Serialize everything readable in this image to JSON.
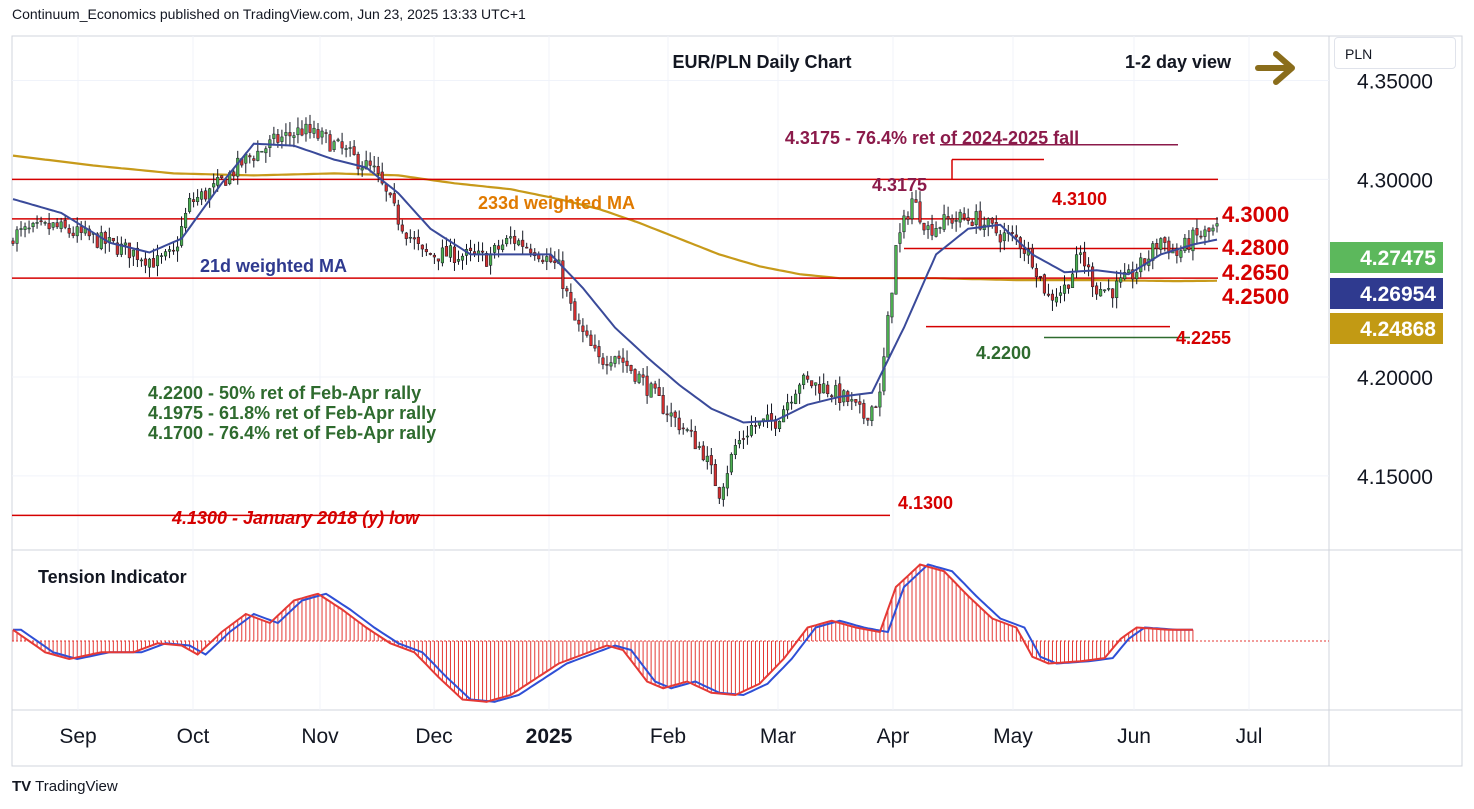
{
  "header": {
    "published": "Continuum_Economics published on TradingView.com, Jun 23, 2025 13:33 UTC+1"
  },
  "branding": {
    "logo_text": "TradingView",
    "logo_mark": "TV"
  },
  "currency_label": "PLN",
  "colors": {
    "up": "#4caf50",
    "down": "#d32f2f",
    "ma21": "#3a4a9a",
    "ma233": "#c79a1a",
    "level": "#d50000",
    "fib": "#8b1a4a",
    "support_green": "#2e6b2e",
    "arrow": "#8a6d1b",
    "tension_hist": "#e53935",
    "tension_line": "#2f4fd6"
  },
  "chart_data": {
    "type": "candlestick",
    "title": "EUR/PLN Daily Chart",
    "view": "1-2 day view",
    "y_axis": {
      "ticks": [
        "4.35000",
        "4.30000",
        "4.20000",
        "4.15000"
      ],
      "ylim": [
        4.1135,
        4.3725
      ]
    },
    "x_axis": {
      "ticks": [
        "Sep",
        "Oct",
        "Nov",
        "Dec",
        "2025",
        "Feb",
        "Mar",
        "Apr",
        "May",
        "Jun",
        "Jul"
      ]
    },
    "price_badges": [
      {
        "value": "4.27475",
        "bg": "#5cb85c"
      },
      {
        "value": "4.26954",
        "bg": "#2f3a8f"
      },
      {
        "value": "4.24868",
        "bg": "#c29a14"
      }
    ],
    "levels": [
      {
        "price": 4.3,
        "label": "4.3000"
      },
      {
        "price": 4.28,
        "label": "4.2800"
      },
      {
        "price": 4.265,
        "label": "4.2650"
      },
      {
        "price": 4.25,
        "label": "4.2500"
      },
      {
        "price": 4.2255,
        "label": "4.2255"
      },
      {
        "price": 4.22,
        "label": "4.2200"
      },
      {
        "price": 4.13,
        "label": "4.1300"
      },
      {
        "price": 4.3175,
        "label": "4.3175"
      },
      {
        "price": 4.31,
        "label": "4.3100"
      }
    ],
    "annotations": {
      "fib_top": "4.3175 - 76.4% ret of 2024-2025 fall",
      "ma233": "233d weighted MA",
      "ma21": "21d weighted MA",
      "ret1": "4.2200 - 50% ret of Feb-Apr rally",
      "ret2": "4.1975 - 61.8% ret of Feb-Apr rally",
      "ret3": "4.1700 - 76.4% ret of Feb-Apr rally",
      "low2018": "4.1300 - January 2018 (y) low"
    },
    "close_anchors": [
      [
        0,
        4.272
      ],
      [
        10,
        4.276
      ],
      [
        20,
        4.27
      ],
      [
        30,
        4.263
      ],
      [
        36,
        4.258
      ],
      [
        40,
        4.262
      ],
      [
        44,
        4.288
      ],
      [
        50,
        4.295
      ],
      [
        58,
        4.31
      ],
      [
        66,
        4.32
      ],
      [
        72,
        4.325
      ],
      [
        78,
        4.32
      ],
      [
        84,
        4.312
      ],
      [
        90,
        4.304
      ],
      [
        96,
        4.28
      ],
      [
        102,
        4.262
      ],
      [
        110,
        4.262
      ],
      [
        118,
        4.26
      ],
      [
        124,
        4.27
      ],
      [
        130,
        4.265
      ],
      [
        136,
        4.255
      ],
      [
        140,
        4.228
      ],
      [
        146,
        4.208
      ],
      [
        150,
        4.212
      ],
      [
        156,
        4.2
      ],
      [
        162,
        4.185
      ],
      [
        168,
        4.172
      ],
      [
        172,
        4.162
      ],
      [
        176,
        4.142
      ],
      [
        180,
        4.165
      ],
      [
        184,
        4.175
      ],
      [
        190,
        4.178
      ],
      [
        196,
        4.198
      ],
      [
        202,
        4.195
      ],
      [
        208,
        4.188
      ],
      [
        212,
        4.18
      ],
      [
        216,
        4.19
      ],
      [
        220,
        4.265
      ],
      [
        224,
        4.29
      ],
      [
        228,
        4.275
      ],
      [
        234,
        4.28
      ],
      [
        240,
        4.28
      ],
      [
        246,
        4.272
      ],
      [
        250,
        4.27
      ],
      [
        254,
        4.26
      ],
      [
        258,
        4.24
      ],
      [
        262,
        4.245
      ],
      [
        266,
        4.262
      ],
      [
        270,
        4.245
      ],
      [
        274,
        4.244
      ],
      [
        278,
        4.25
      ],
      [
        282,
        4.258
      ],
      [
        286,
        4.27
      ],
      [
        290,
        4.262
      ],
      [
        294,
        4.27
      ],
      [
        298,
        4.273
      ],
      [
        300,
        4.2748
      ]
    ],
    "ma21_anchors": [
      [
        0,
        4.29
      ],
      [
        12,
        4.283
      ],
      [
        24,
        4.268
      ],
      [
        34,
        4.263
      ],
      [
        42,
        4.27
      ],
      [
        52,
        4.298
      ],
      [
        60,
        4.318
      ],
      [
        70,
        4.317
      ],
      [
        80,
        4.31
      ],
      [
        88,
        4.306
      ],
      [
        96,
        4.293
      ],
      [
        104,
        4.275
      ],
      [
        114,
        4.262
      ],
      [
        124,
        4.262
      ],
      [
        134,
        4.262
      ],
      [
        142,
        4.245
      ],
      [
        150,
        4.225
      ],
      [
        158,
        4.21
      ],
      [
        166,
        4.196
      ],
      [
        174,
        4.184
      ],
      [
        182,
        4.177
      ],
      [
        190,
        4.178
      ],
      [
        198,
        4.186
      ],
      [
        206,
        4.19
      ],
      [
        214,
        4.192
      ],
      [
        222,
        4.225
      ],
      [
        230,
        4.262
      ],
      [
        238,
        4.275
      ],
      [
        246,
        4.277
      ],
      [
        254,
        4.262
      ],
      [
        262,
        4.253
      ],
      [
        270,
        4.254
      ],
      [
        278,
        4.252
      ],
      [
        286,
        4.262
      ],
      [
        294,
        4.267
      ],
      [
        300,
        4.2695
      ]
    ],
    "ma233_anchors": [
      [
        0,
        4.312
      ],
      [
        20,
        4.307
      ],
      [
        40,
        4.303
      ],
      [
        60,
        4.302
      ],
      [
        80,
        4.303
      ],
      [
        96,
        4.302
      ],
      [
        110,
        4.298
      ],
      [
        124,
        4.295
      ],
      [
        136,
        4.29
      ],
      [
        146,
        4.285
      ],
      [
        156,
        4.278
      ],
      [
        166,
        4.27
      ],
      [
        176,
        4.262
      ],
      [
        186,
        4.256
      ],
      [
        196,
        4.252
      ],
      [
        206,
        4.25
      ],
      [
        216,
        4.25
      ],
      [
        230,
        4.25
      ],
      [
        250,
        4.249
      ],
      [
        270,
        4.249
      ],
      [
        290,
        4.2485
      ],
      [
        300,
        4.2487
      ]
    ],
    "tension_anchors": [
      [
        0,
        0.25
      ],
      [
        8,
        -0.25
      ],
      [
        14,
        -0.4
      ],
      [
        22,
        -0.25
      ],
      [
        30,
        -0.25
      ],
      [
        36,
        -0.05
      ],
      [
        42,
        -0.1
      ],
      [
        46,
        -0.3
      ],
      [
        52,
        0.2
      ],
      [
        58,
        0.6
      ],
      [
        64,
        0.4
      ],
      [
        70,
        0.9
      ],
      [
        76,
        1.05
      ],
      [
        82,
        0.7
      ],
      [
        88,
        0.3
      ],
      [
        94,
        -0.05
      ],
      [
        100,
        -0.25
      ],
      [
        106,
        -0.8
      ],
      [
        112,
        -1.3
      ],
      [
        118,
        -1.35
      ],
      [
        124,
        -1.2
      ],
      [
        130,
        -0.85
      ],
      [
        136,
        -0.5
      ],
      [
        142,
        -0.3
      ],
      [
        148,
        -0.1
      ],
      [
        152,
        -0.2
      ],
      [
        158,
        -0.9
      ],
      [
        162,
        -1.05
      ],
      [
        168,
        -0.9
      ],
      [
        174,
        -1.15
      ],
      [
        180,
        -1.2
      ],
      [
        186,
        -0.95
      ],
      [
        192,
        -0.4
      ],
      [
        198,
        0.3
      ],
      [
        204,
        0.45
      ],
      [
        210,
        0.3
      ],
      [
        216,
        0.2
      ],
      [
        220,
        1.2
      ],
      [
        226,
        1.7
      ],
      [
        232,
        1.55
      ],
      [
        238,
        1.0
      ],
      [
        244,
        0.5
      ],
      [
        250,
        0.3
      ],
      [
        254,
        -0.35
      ],
      [
        258,
        -0.5
      ],
      [
        266,
        -0.45
      ],
      [
        272,
        -0.38
      ],
      [
        276,
        0.05
      ],
      [
        280,
        0.3
      ],
      [
        288,
        0.25
      ],
      [
        294,
        0.25
      ]
    ]
  },
  "tension": {
    "label": "Tension Indicator"
  }
}
